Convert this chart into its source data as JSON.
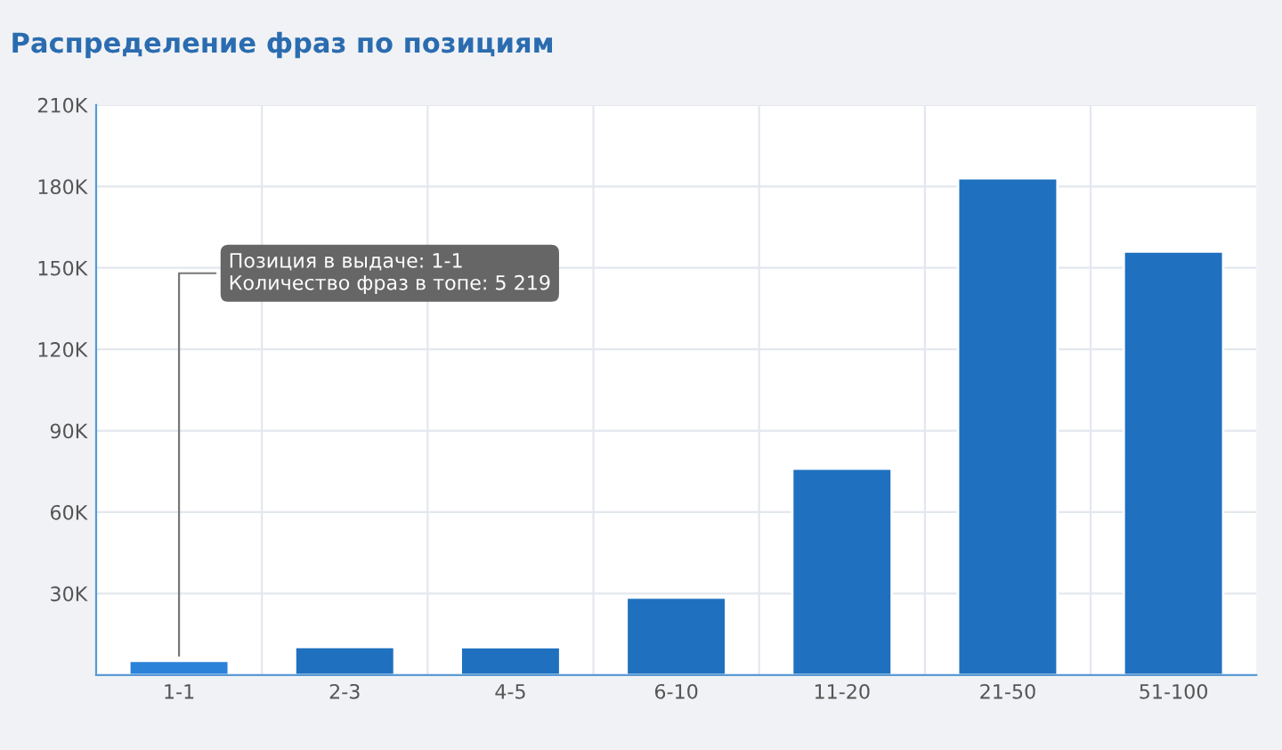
{
  "chart_data": {
    "type": "bar",
    "title": "Распределение фраз по позициям",
    "categories": [
      "1-1",
      "2-3",
      "4-5",
      "6-10",
      "11-20",
      "21-50",
      "51-100"
    ],
    "values": [
      5219,
      10300,
      10200,
      28500,
      76000,
      183000,
      156000
    ],
    "colors": [
      "#2b82d9",
      "#1f70bf",
      "#1f70bf",
      "#1f70bf",
      "#1f70bf",
      "#1f70bf",
      "#1f70bf"
    ],
    "ylim": [
      0,
      210000
    ],
    "yticks": [
      {
        "value": 0,
        "label": null
      },
      {
        "value": 30000,
        "label": "30K"
      },
      {
        "value": 60000,
        "label": "60K"
      },
      {
        "value": 90000,
        "label": "90K"
      },
      {
        "value": 120000,
        "label": "120K"
      },
      {
        "value": 150000,
        "label": "150K"
      },
      {
        "value": 180000,
        "label": "180K"
      },
      {
        "value": 210000,
        "label": "210K"
      }
    ],
    "grid": true,
    "annotations": [
      {
        "text": "Позиция в выдаче: 1-1\nКоличество фраз в топе: 5 219",
        "x": "1-1",
        "y": 5219
      }
    ]
  }
}
